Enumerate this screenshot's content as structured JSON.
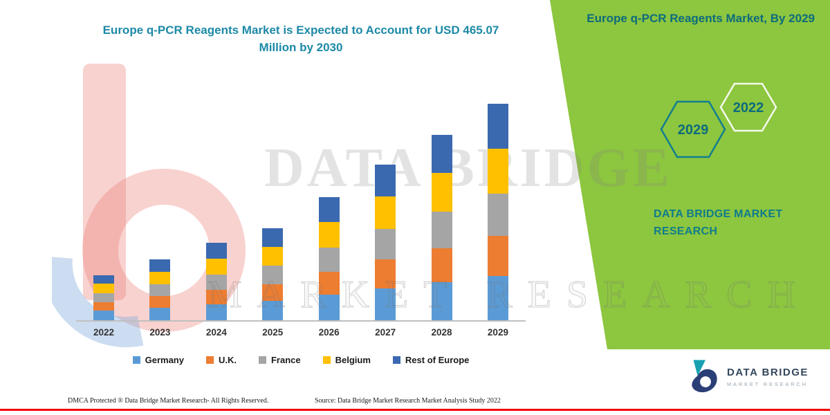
{
  "chart_data": {
    "type": "bar",
    "stacked": true,
    "title": "Europe q-PCR Reagents Market is Expected to Account for USD 465.07 Million by 2030",
    "categories": [
      "2022",
      "2023",
      "2024",
      "2025",
      "2026",
      "2027",
      "2028",
      "2029"
    ],
    "series": [
      {
        "name": "Germany",
        "color": "#5B9BD5",
        "values": [
          20,
          26,
          33,
          39,
          52,
          65,
          77,
          90
        ]
      },
      {
        "name": "U.K.",
        "color": "#ED7D31",
        "values": [
          17,
          23,
          29,
          35,
          47,
          59,
          70,
          82
        ]
      },
      {
        "name": "France",
        "color": "#A5A5A5",
        "values": [
          18,
          24,
          31,
          37,
          49,
          62,
          74,
          86
        ]
      },
      {
        "name": "Belgium",
        "color": "#FFC000",
        "values": [
          19,
          26,
          33,
          39,
          52,
          66,
          79,
          92
        ]
      },
      {
        "name": "Rest of Europe",
        "color": "#3A69B0",
        "values": [
          18,
          25,
          32,
          37,
          51,
          65,
          77,
          91
        ]
      }
    ],
    "xlabel": "",
    "ylabel": "",
    "y_axis_visible": false,
    "units": "USD Million (estimated, no y-axis shown)",
    "legend_position": "bottom",
    "grid": false
  },
  "side_panel": {
    "title": "Europe q-PCR Reagents Market, By 2029",
    "hexagons": [
      "2029",
      "2022"
    ],
    "brand_caption": "DATA BRIDGE MARKET RESEARCH"
  },
  "branding": {
    "logo_title": "DATA BRIDGE",
    "logo_subtitle": "MARKET RESEARCH"
  },
  "watermarks": {
    "databridge": "DATA BRIDGE",
    "market_research": "MARKET RESEARCH"
  },
  "footer": {
    "dmca": "DMCA Protected ® Data Bridge Market Research- All Rights Reserved.",
    "source": "Source: Data Bridge Market Research  Market Analysis Study 2022"
  },
  "colors": {
    "green_panel": "#8DC63F",
    "title_teal": "#1C89A6",
    "side_teal": "#0D6B7C",
    "red_line": "#F40000"
  }
}
